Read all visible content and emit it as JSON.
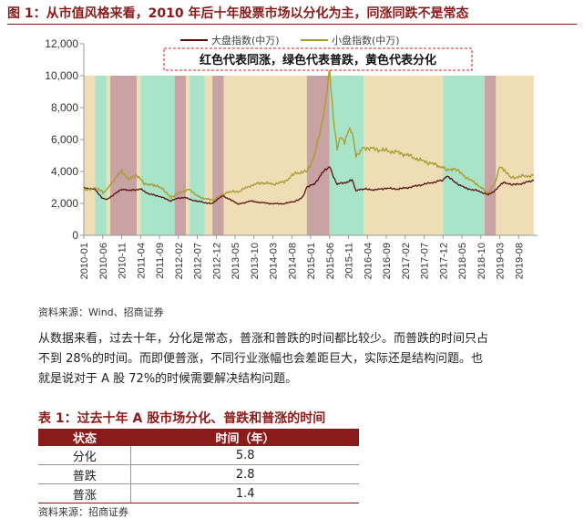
{
  "figure": {
    "title": "图 1：从市值风格来看，2010 年后十年股票市场以分化为主，同涨同跌不是常态",
    "source": "资料来源：Wind、招商证券"
  },
  "chart_data": {
    "type": "line",
    "ylim": [
      0,
      12000
    ],
    "yticks": [
      "0",
      "2,000",
      "4,000",
      "6,000",
      "8,000",
      "10,000",
      "12,000"
    ],
    "x_range": [
      "2010-01",
      "2020-01"
    ],
    "xticks": [
      "2010-01",
      "2010-06",
      "2010-11",
      "2011-04",
      "2011-09",
      "2012-02",
      "2012-07",
      "2012-12",
      "2013-05",
      "2013-10",
      "2014-03",
      "2014-08",
      "2015-01",
      "2015-06",
      "2015-11",
      "2016-04",
      "2016-09",
      "2017-02",
      "2017-07",
      "2017-12",
      "2018-05",
      "2018-10",
      "2019-03",
      "2019-08"
    ],
    "annotation": "红色代表同涨，绿色代表普跌，黄色代表分化",
    "regime_colors": {
      "red": "#C9A3A3",
      "green": "#A9E3C8",
      "yellow": "#EFDDB6"
    },
    "regimes": [
      {
        "start": "2010-01",
        "end": "2010-04",
        "type": "yellow"
      },
      {
        "start": "2010-04",
        "end": "2010-07",
        "type": "green"
      },
      {
        "start": "2010-07",
        "end": "2010-08",
        "type": "yellow"
      },
      {
        "start": "2010-08",
        "end": "2011-03",
        "type": "red"
      },
      {
        "start": "2011-03",
        "end": "2011-04",
        "type": "yellow"
      },
      {
        "start": "2011-04",
        "end": "2012-01",
        "type": "green"
      },
      {
        "start": "2012-01",
        "end": "2012-04",
        "type": "red"
      },
      {
        "start": "2012-04",
        "end": "2012-05",
        "type": "yellow"
      },
      {
        "start": "2012-05",
        "end": "2012-09",
        "type": "green"
      },
      {
        "start": "2012-09",
        "end": "2012-11",
        "type": "yellow"
      },
      {
        "start": "2012-11",
        "end": "2013-02",
        "type": "red"
      },
      {
        "start": "2013-02",
        "end": "2014-12",
        "type": "yellow"
      },
      {
        "start": "2014-12",
        "end": "2015-06",
        "type": "red"
      },
      {
        "start": "2015-06",
        "end": "2016-03",
        "type": "green"
      },
      {
        "start": "2016-03",
        "end": "2017-12",
        "type": "yellow"
      },
      {
        "start": "2017-12",
        "end": "2018-11",
        "type": "green"
      },
      {
        "start": "2018-11",
        "end": "2019-02",
        "type": "red"
      },
      {
        "start": "2019-02",
        "end": "2019-12",
        "type": "yellow"
      }
    ],
    "series": [
      {
        "name": "大盘指数(中万)",
        "color": "#5A1010",
        "points": [
          [
            "2010-01",
            3000
          ],
          [
            "2010-04",
            2850
          ],
          [
            "2010-06",
            2300
          ],
          [
            "2010-07",
            2250
          ],
          [
            "2010-09",
            2550
          ],
          [
            "2010-11",
            2900
          ],
          [
            "2011-01",
            2800
          ],
          [
            "2011-04",
            2900
          ],
          [
            "2011-06",
            2600
          ],
          [
            "2011-09",
            2450
          ],
          [
            "2011-12",
            2150
          ],
          [
            "2012-02",
            2350
          ],
          [
            "2012-04",
            2350
          ],
          [
            "2012-06",
            2200
          ],
          [
            "2012-09",
            2050
          ],
          [
            "2012-11",
            1980
          ],
          [
            "2013-01",
            2400
          ],
          [
            "2013-02",
            2450
          ],
          [
            "2013-06",
            1950
          ],
          [
            "2013-09",
            2150
          ],
          [
            "2013-12",
            2050
          ],
          [
            "2014-03",
            1980
          ],
          [
            "2014-06",
            1980
          ],
          [
            "2014-09",
            2150
          ],
          [
            "2014-11",
            2400
          ],
          [
            "2014-12",
            3050
          ],
          [
            "2015-02",
            3200
          ],
          [
            "2015-04",
            3900
          ],
          [
            "2015-06",
            4300
          ],
          [
            "2015-07",
            3700
          ],
          [
            "2015-08",
            3200
          ],
          [
            "2015-10",
            3300
          ],
          [
            "2015-12",
            3450
          ],
          [
            "2016-01",
            2800
          ],
          [
            "2016-03",
            2900
          ],
          [
            "2016-06",
            2850
          ],
          [
            "2016-09",
            2950
          ],
          [
            "2016-12",
            2900
          ],
          [
            "2017-03",
            3000
          ],
          [
            "2017-06",
            3150
          ],
          [
            "2017-09",
            3300
          ],
          [
            "2017-12",
            3450
          ],
          [
            "2018-01",
            3750
          ],
          [
            "2018-03",
            3350
          ],
          [
            "2018-06",
            2950
          ],
          [
            "2018-09",
            2800
          ],
          [
            "2018-12",
            2550
          ],
          [
            "2019-02",
            2850
          ],
          [
            "2019-04",
            3350
          ],
          [
            "2019-06",
            3150
          ],
          [
            "2019-09",
            3250
          ],
          [
            "2019-12",
            3450
          ]
        ]
      },
      {
        "name": "小盘指数(中万)",
        "color": "#A89B2C",
        "points": [
          [
            "2010-01",
            2800
          ],
          [
            "2010-04",
            3000
          ],
          [
            "2010-06",
            2700
          ],
          [
            "2010-07",
            2800
          ],
          [
            "2010-09",
            3500
          ],
          [
            "2010-11",
            4000
          ],
          [
            "2011-01",
            3500
          ],
          [
            "2011-03",
            3800
          ],
          [
            "2011-05",
            3250
          ],
          [
            "2011-08",
            3100
          ],
          [
            "2011-10",
            2900
          ],
          [
            "2011-12",
            2350
          ],
          [
            "2012-02",
            2650
          ],
          [
            "2012-05",
            2900
          ],
          [
            "2012-07",
            2450
          ],
          [
            "2012-09",
            2300
          ],
          [
            "2012-11",
            2200
          ],
          [
            "2013-01",
            2450
          ],
          [
            "2013-03",
            2700
          ],
          [
            "2013-06",
            2750
          ],
          [
            "2013-09",
            3100
          ],
          [
            "2013-12",
            3300
          ],
          [
            "2014-03",
            3200
          ],
          [
            "2014-06",
            3350
          ],
          [
            "2014-09",
            3900
          ],
          [
            "2014-12",
            4000
          ],
          [
            "2015-02",
            5000
          ],
          [
            "2015-04",
            7000
          ],
          [
            "2015-05",
            8500
          ],
          [
            "2015-06",
            10300
          ],
          [
            "2015-07",
            7300
          ],
          [
            "2015-08",
            5500
          ],
          [
            "2015-09",
            6200
          ],
          [
            "2015-10",
            5700
          ],
          [
            "2015-11",
            6700
          ],
          [
            "2015-12",
            6500
          ],
          [
            "2016-01",
            5000
          ],
          [
            "2016-03",
            5500
          ],
          [
            "2016-06",
            5400
          ],
          [
            "2016-09",
            5300
          ],
          [
            "2016-12",
            5200
          ],
          [
            "2017-03",
            5000
          ],
          [
            "2017-06",
            4700
          ],
          [
            "2017-09",
            4500
          ],
          [
            "2017-12",
            4250
          ],
          [
            "2018-01",
            4100
          ],
          [
            "2018-03",
            4200
          ],
          [
            "2018-06",
            3650
          ],
          [
            "2018-09",
            3200
          ],
          [
            "2018-12",
            2600
          ],
          [
            "2019-02",
            3400
          ],
          [
            "2019-03",
            4300
          ],
          [
            "2019-04",
            4100
          ],
          [
            "2019-06",
            3600
          ],
          [
            "2019-09",
            3700
          ],
          [
            "2019-12",
            3750
          ]
        ]
      }
    ]
  },
  "paragraph": [
    "从数据来看，过去十年，分化是常态，普涨和普跌的时间都比较少。而普跌的时间只占",
    "不到 28%的时间。而即便普涨，不同行业涨幅也会差距巨大，实际还是结构问题。也",
    "就是说对于 A 股 72%的时候需要解决结构问题。"
  ],
  "table": {
    "title": "表 1：过去十年 A 股市场分化、普跌和普涨的时间",
    "headers": [
      "状态",
      "时间（年）"
    ],
    "rows": [
      [
        "分化",
        "5.8"
      ],
      [
        "普跌",
        "2.8"
      ],
      [
        "普涨",
        "1.4"
      ]
    ],
    "source": "资料来源：招商证券"
  }
}
